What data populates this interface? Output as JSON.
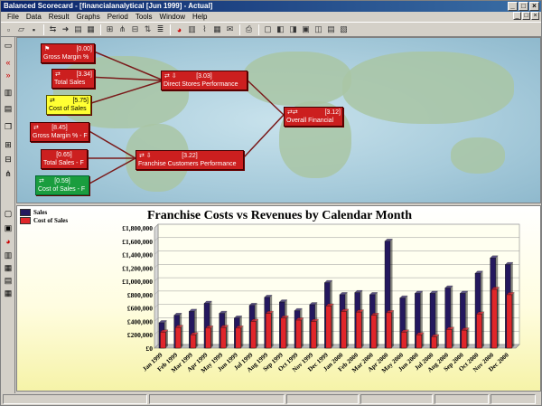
{
  "window": {
    "title": "Balanced Scorecard - [financialanalytical [Jun 1999] - Actual]"
  },
  "menu": [
    "File",
    "Data",
    "Result",
    "Graphs",
    "Period",
    "Tools",
    "Window",
    "Help"
  ],
  "toolbar_icons": [
    "new-icon",
    "open-icon",
    "save-icon",
    "sep",
    "link-icon",
    "navigate-icon",
    "properties-icon",
    "calendar-icon",
    "sep",
    "tree-icon",
    "branch-icon",
    "hierarchy-icon",
    "sort-icon",
    "layers-icon",
    "sep",
    "pie-chart-icon",
    "bar-chart-icon",
    "line-chart-icon",
    "table-icon",
    "mail-icon",
    "sep",
    "print-icon",
    "sep",
    "view1-icon",
    "view2-icon",
    "view3-icon",
    "view4-icon",
    "view5-icon",
    "view6-icon",
    "view7-icon"
  ],
  "map": {
    "nodes": [
      {
        "id": "gross-margin",
        "value": "[0.00]",
        "label": "Gross Margin %",
        "color": "red"
      },
      {
        "id": "total-sales",
        "value": "[3.34]",
        "label": "Total Sales",
        "color": "red"
      },
      {
        "id": "cost-of-sales",
        "value": "[5.75]",
        "label": "Cost of Sales",
        "color": "yellow"
      },
      {
        "id": "direct-stores",
        "value": "[3.03]",
        "label": "Direct Stores Performance",
        "color": "red"
      },
      {
        "id": "overall-financial",
        "value": "[3.12]",
        "label": "Overall Financial",
        "color": "red"
      },
      {
        "id": "gross-margin-f",
        "value": "[8.45]",
        "label": "Gross Margin % - F",
        "color": "red"
      },
      {
        "id": "total-sales-f",
        "value": "[0.65]",
        "label": "Total Sales - F",
        "color": "red"
      },
      {
        "id": "franchise-customers",
        "value": "[3.22]",
        "label": "Franchise Customers Performance",
        "color": "red"
      },
      {
        "id": "cost-of-sales-f",
        "value": "[0.59]",
        "label": "Cost of Sales - F",
        "color": "green"
      }
    ],
    "colors": {
      "red": "#cc1f1f",
      "yellow": "#ffff33",
      "green": "#1a9d3e",
      "link": "#7a1a1a"
    }
  },
  "chart_data": {
    "type": "bar",
    "title": "Franchise Costs vs Revenues by Calendar Month",
    "categories": [
      "Jan 1999",
      "Feb 1999",
      "Mar 1999",
      "Apr 1999",
      "May 1999",
      "Jun 1999",
      "Jul 1999",
      "Aug 1999",
      "Sep 1999",
      "Oct 1999",
      "Nov 1999",
      "Dec 1999",
      "Jan 2000",
      "Feb 2000",
      "Mar 2000",
      "Apr 2000",
      "May 2000",
      "Jun 2000",
      "Jul 2000",
      "Aug 2000",
      "Sep 2000",
      "Oct 2000",
      "Nov 2000",
      "Dec 2000"
    ],
    "series": [
      {
        "name": "Sales",
        "color": "#24185e",
        "values": [
          380000,
          490000,
          550000,
          670000,
          520000,
          450000,
          640000,
          760000,
          690000,
          560000,
          650000,
          980000,
          800000,
          830000,
          800000,
          1600000,
          750000,
          820000,
          820000,
          900000,
          820000,
          1120000,
          1350000,
          1250000
        ]
      },
      {
        "name": "Cost of Sales",
        "color": "#e0262a",
        "values": [
          240000,
          310000,
          200000,
          300000,
          310000,
          300000,
          400000,
          520000,
          450000,
          420000,
          400000,
          630000,
          550000,
          540000,
          490000,
          530000,
          240000,
          200000,
          170000,
          280000,
          270000,
          510000,
          880000,
          800000
        ]
      }
    ],
    "ylim": [
      0,
      1800000
    ],
    "yticks": [
      "£0",
      "£200,000",
      "£400,000",
      "£600,000",
      "£800,000",
      "£1,000,000",
      "£1,200,000",
      "£1,400,000",
      "£1,600,000",
      "£1,800,000"
    ],
    "legend_position": "top-left",
    "grid": true
  }
}
